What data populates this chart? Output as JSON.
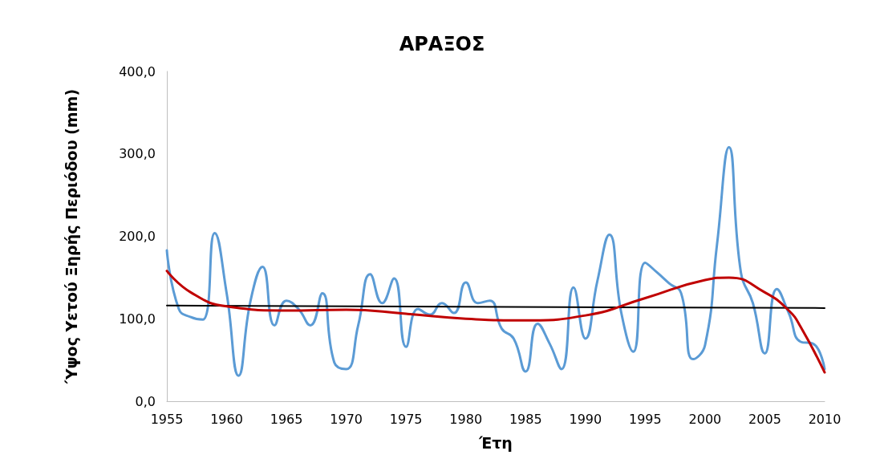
{
  "chart_data": {
    "type": "line",
    "title": "ΑΡΑΞΟΣ",
    "xlabel": "Έτη",
    "ylabel": "Ύψος Υετού Ξηρής Περιόδου (mm)",
    "x": [
      1955,
      1956,
      1957,
      1958,
      1959,
      1960,
      1961,
      1962,
      1963,
      1964,
      1965,
      1966,
      1967,
      1968,
      1969,
      1970,
      1971,
      1972,
      1973,
      1974,
      1975,
      1976,
      1977,
      1978,
      1979,
      1980,
      1981,
      1982,
      1983,
      1984,
      1985,
      1986,
      1987,
      1988,
      1989,
      1990,
      1991,
      1992,
      1993,
      1994,
      1995,
      1996,
      1997,
      1998,
      1999,
      2000,
      2001,
      2002,
      2003,
      2004,
      2005,
      2006,
      2007,
      2008,
      2009,
      2010
    ],
    "series": [
      {
        "color": "#5b9bd5",
        "values": [
          183,
          112,
          102,
          99,
          204,
          131,
          31,
          122,
          163,
          92,
          122,
          112,
          92,
          131,
          47,
          39,
          92,
          154,
          119,
          149,
          66,
          112,
          105,
          119,
          107,
          144,
          119,
          122,
          88,
          76,
          36,
          94,
          70,
          39,
          138,
          76,
          146,
          202,
          107,
          60,
          168,
          156,
          143,
          131,
          51,
          68,
          190,
          308,
          156,
          119,
          58,
          136,
          107,
          72,
          70,
          39
        ]
      },
      {
        "type": "line",
        "color": "#000000",
        "x": [
          1955,
          2010
        ],
        "values": [
          116,
          113
        ]
      },
      {
        "type": "line",
        "color": "#c00000",
        "x": [
          1955,
          1957,
          1960,
          1965,
          1970,
          1975,
          1980,
          1985,
          1990,
          1995,
          2000,
          2002,
          2005,
          2007,
          2008,
          2010
        ],
        "values": [
          158,
          132,
          115,
          110,
          111,
          106,
          100,
          98,
          104,
          125,
          147,
          150,
          132,
          110,
          90,
          35
        ]
      }
    ],
    "xlim": [
      1955,
      2010
    ],
    "xticks": [
      1955,
      1960,
      1965,
      1970,
      1975,
      1980,
      1985,
      1990,
      1995,
      2000,
      2005,
      2010
    ],
    "ylim": [
      0,
      400
    ],
    "yticks": [
      {
        "value": 0,
        "label": "0,0"
      },
      {
        "value": 100,
        "label": "100,0"
      },
      {
        "value": 200,
        "label": "200,0"
      },
      {
        "value": 300,
        "label": "300,0"
      },
      {
        "value": 400,
        "label": "400,0"
      }
    ],
    "grid": false,
    "marker": "none",
    "line_style": "solid"
  }
}
